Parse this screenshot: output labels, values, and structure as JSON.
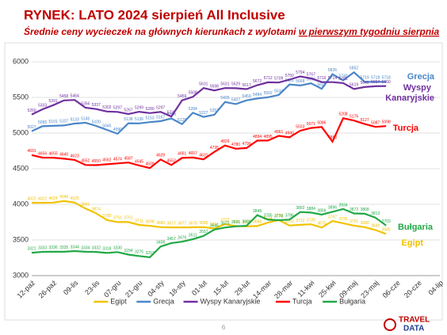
{
  "chart_data": {
    "type": "line",
    "title": "RYNEK: LATO 2024 sierpień All Inclusive",
    "subtitle": [
      "Średnie ceny wycieczek na głównych kierunkach z wylotami ",
      "w pierwszym tygodniu sierpnia"
    ],
    "categories": [
      "12-paź",
      null,
      "26-paź",
      null,
      "09-lis",
      null,
      "23-lis",
      null,
      "07-gru",
      null,
      "21-gru",
      null,
      "04-sty",
      null,
      "18-sty",
      null,
      "01-lut",
      null,
      "15-lut",
      null,
      "29-lut",
      null,
      "14-mar",
      null,
      "28-mar",
      null,
      "11-kwi",
      null,
      "25-kwi",
      null,
      "09-maj",
      null,
      "23-maj",
      null,
      "06-cze",
      null,
      "20-cze",
      null,
      "04-lip"
    ],
    "ylim": [
      3000,
      6000
    ],
    "yticks": [
      3000,
      3500,
      4000,
      4500,
      5000,
      5500,
      6000
    ],
    "grid": true,
    "legend": "bottom",
    "series": [
      {
        "name": "Egipt",
        "color": "#f2c200",
        "values": [
          4022,
          4022,
          4024,
          4046,
          4025,
          3941,
          3874,
          3780,
          3751,
          3751,
          3711,
          3698,
          3680,
          3677,
          3677,
          3678,
          3680,
          3661,
          3722,
          3695,
          3691,
          3696,
          3744,
          3780,
          3702,
          3712,
          3720,
          3675,
          3767,
          3735,
          3701,
          3680,
          3640,
          3585,
          null,
          null,
          null,
          null,
          null
        ]
      },
      {
        "name": "Grecja",
        "color": "#4a86c8",
        "values": [
          5027,
          5095,
          5101,
          5107,
          5133,
          5145,
          5100,
          5045,
          4990,
          5138,
          5136,
          5153,
          5167,
          5206,
          5125,
          5284,
          5227,
          5257,
          5435,
          5407,
          5459,
          5484,
          5502,
          5534,
          5681,
          5668,
          5698,
          5621,
          5826,
          5740,
          5852,
          5719,
          5718,
          5718,
          null,
          null,
          null,
          null,
          null
        ]
      },
      {
        "name": "Wyspy Kanaryjskie",
        "color": "#7030a0",
        "values": [
          5260,
          5333,
          5391,
          5458,
          5464,
          5356,
          5337,
          5302,
          5297,
          5267,
          5299,
          5280,
          5297,
          5232,
          5459,
          5508,
          5631,
          5598,
          5631,
          5629,
          5617,
          5672,
          5712,
          5709,
          5750,
          5794,
          5767,
          5716,
          5714,
          5701,
          5619,
          5646,
          5657,
          5660,
          null,
          null,
          null,
          null,
          null
        ]
      },
      {
        "name": "Turcja",
        "color": "#ff0000",
        "values": [
          4691,
          4656,
          4655,
          4640,
          4623,
          4552,
          4550,
          4562,
          4574,
          4587,
          4545,
          4509,
          4629,
          4552,
          4651,
          4657,
          4631,
          4735,
          4826,
          4780,
          4790,
          4894,
          4895,
          4961,
          4940,
          5033,
          5071,
          5086,
          4880,
          5208,
          5176,
          5127,
          5087,
          5098,
          null,
          null,
          null,
          null,
          null
        ]
      },
      {
        "name": "Bułgaria",
        "color": "#22a847",
        "values": [
          3321,
          3333,
          3336,
          3335,
          3344,
          3334,
          3332,
          3318,
          3330,
          3294,
          3275,
          3257,
          3408,
          3457,
          3476,
          3511,
          3557,
          3645,
          3675,
          3691,
          3699,
          3848,
          3785,
          3778,
          3786,
          3892,
          3884,
          3856,
          3896,
          3934,
          3872,
          3868,
          3813,
          3703,
          null,
          null,
          null,
          null,
          null
        ]
      }
    ],
    "annotations": [
      {
        "text": "Grecja",
        "color": "#4a86c8"
      },
      {
        "text": "Wyspy",
        "color": "#7030a0"
      },
      {
        "text": "Kanaryjskie",
        "color": "#7030a0"
      },
      {
        "text": "Turcja",
        "color": "#ff0000"
      },
      {
        "text": "Bułgaria",
        "color": "#22a847"
      },
      {
        "text": "Egipt",
        "color": "#f2c200"
      }
    ],
    "page_number": "6",
    "logo": [
      "TRAVEL",
      "DATA"
    ]
  }
}
